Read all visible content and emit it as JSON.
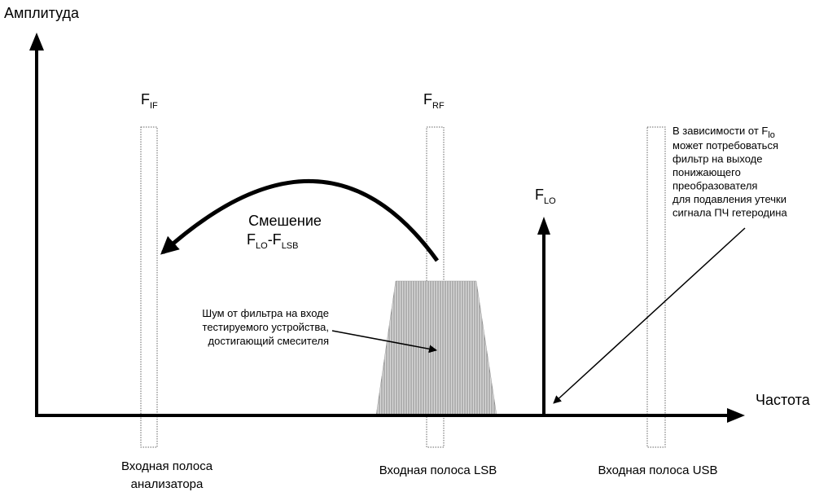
{
  "axes": {
    "y_label": "Амплитуда",
    "x_label": "Частота"
  },
  "bands": [
    {
      "label": {
        "main": "F",
        "sub": "IF"
      },
      "caption": [
        "Входная полоса",
        "анализатора"
      ]
    },
    {
      "label": {
        "main": "F",
        "sub": "RF"
      },
      "caption": [
        "Входная полоса LSB"
      ]
    },
    {
      "caption": [
        "Входная полоса USB"
      ]
    }
  ],
  "lo": {
    "main": "F",
    "sub": "LO"
  },
  "mixing": {
    "title": "Смешение",
    "formula": [
      "F",
      "LO",
      "-F",
      "LSB"
    ]
  },
  "noise_note": [
    "Шум от фильтра на входе",
    "тестируемого устройства,",
    "достигающий смесителя"
  ],
  "filter_note": {
    "first": {
      "main": "В зависимости от F",
      "sub": "lo"
    },
    "lines": [
      "может потребоваться",
      "фильтр на выходе",
      "понижающего",
      "преобразователя",
      "для подавления утечки",
      "сигнала ПЧ гетеродина"
    ]
  }
}
